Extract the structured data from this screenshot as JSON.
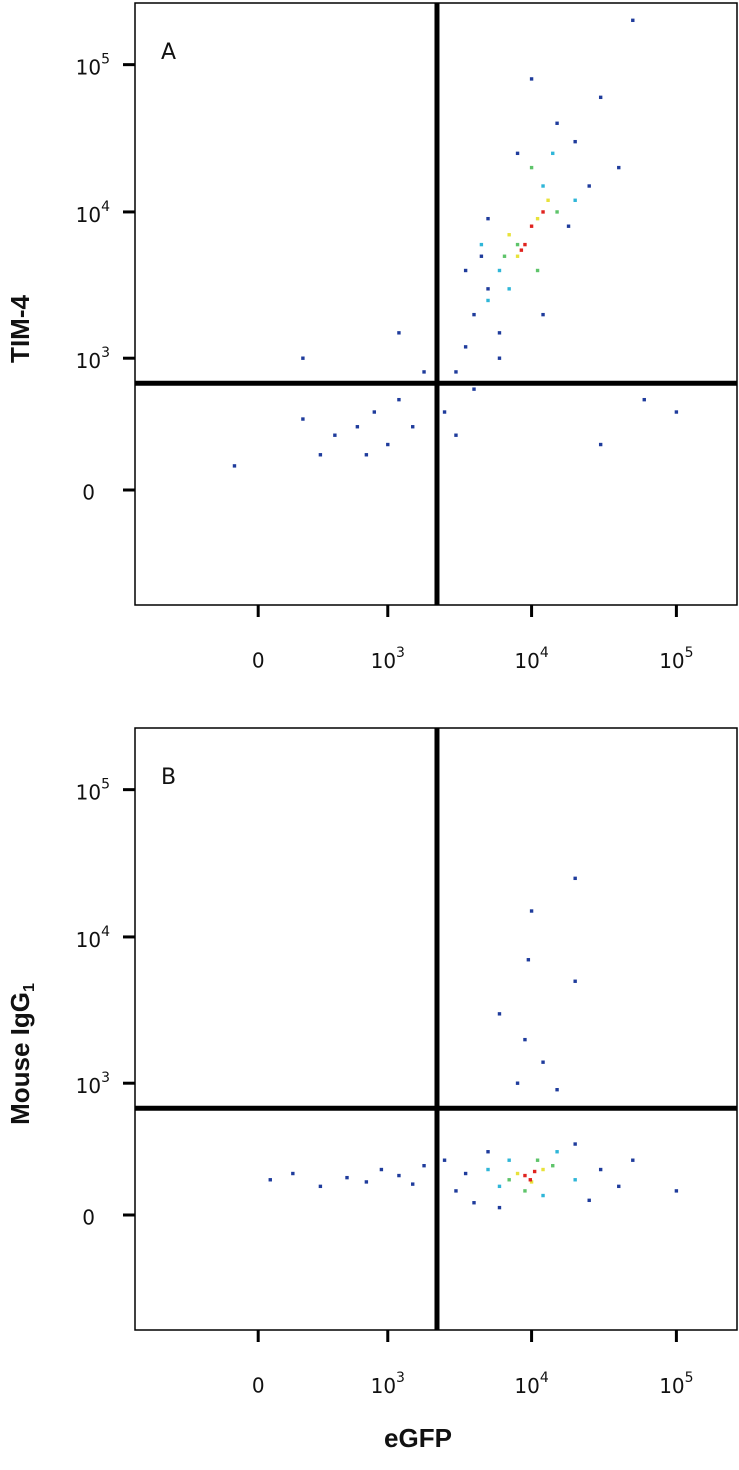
{
  "chart_data": [
    {
      "type": "scatter",
      "annotation": "A",
      "ylabel": "TIM-4",
      "xscale": "biexponential",
      "yscale": "biexponential",
      "xlim": [
        -900,
        262144
      ],
      "ylim": [
        -760,
        262144
      ],
      "xticks": [
        0,
        {
          "value": 1000,
          "label": "10",
          "exponent": "3"
        },
        {
          "value": 10000,
          "label": "10",
          "exponent": "4"
        },
        {
          "value": 100000,
          "label": "10",
          "exponent": "5"
        }
      ],
      "yticks": [
        0,
        {
          "value": 1000,
          "label": "10",
          "exponent": "3"
        },
        {
          "value": 10000,
          "label": "10",
          "exponent": "4"
        },
        {
          "value": 100000,
          "label": "10",
          "exponent": "5"
        }
      ],
      "gate_x": 2215,
      "gate_y": 663,
      "series": [
        {
          "color": "#1f3c9c",
          "x": [
            200,
            400,
            600,
            800,
            1000,
            1200,
            300,
            -100,
            1500,
            700,
            2500,
            3000,
            4000,
            1800,
            1200,
            3500,
            200,
            4000,
            5000,
            6000,
            3500,
            20000,
            15000,
            25000,
            30000,
            8000,
            5000,
            40000,
            6000,
            12000,
            18000,
            10000,
            50000,
            100000,
            60000,
            30000,
            2200,
            4500,
            3000
          ],
          "y": [
            350,
            250,
            300,
            400,
            200,
            500,
            150,
            100,
            300,
            150,
            400,
            250,
            600,
            800,
            1500,
            1200,
            1000,
            2000,
            3000,
            1500,
            4000,
            30000,
            40000,
            15000,
            60000,
            25000,
            9000,
            20000,
            1000,
            2000,
            8000,
            80000,
            200000,
            400,
            500,
            200,
            100,
            5000,
            800
          ]
        },
        {
          "color": "#2fb6d8",
          "x": [
            6000,
            12000,
            7000,
            14000,
            5000,
            20000,
            4500
          ],
          "y": [
            4000,
            15000,
            3000,
            25000,
            2500,
            12000,
            6000
          ]
        },
        {
          "color": "#5ec46a",
          "x": [
            8000,
            15000,
            10000,
            6500,
            11000
          ],
          "y": [
            6000,
            10000,
            20000,
            5000,
            4000
          ]
        },
        {
          "color": "#e8e23a",
          "x": [
            8000,
            11000,
            13000,
            7000
          ],
          "y": [
            5000,
            9000,
            12000,
            7000
          ]
        },
        {
          "color": "#e0231f",
          "x": [
            9000,
            10000,
            8500,
            12000
          ],
          "y": [
            6000,
            8000,
            5500,
            10000
          ]
        }
      ]
    },
    {
      "type": "scatter",
      "annotation": "B",
      "ylabel": "Mouse IgG",
      "ylabel_sub": "1",
      "xlabel": "eGFP",
      "xscale": "biexponential",
      "yscale": "biexponential",
      "xlim": [
        -900,
        262144
      ],
      "ylim": [
        -760,
        262144
      ],
      "xticks": [
        0,
        {
          "value": 1000,
          "label": "10",
          "exponent": "3"
        },
        {
          "value": 10000,
          "label": "10",
          "exponent": "4"
        },
        {
          "value": 100000,
          "label": "10",
          "exponent": "5"
        }
      ],
      "yticks": [
        0,
        {
          "value": 1000,
          "label": "10",
          "exponent": "3"
        },
        {
          "value": 10000,
          "label": "10",
          "exponent": "4"
        },
        {
          "value": 100000,
          "label": "10",
          "exponent": "5"
        }
      ],
      "gate_x": 2215,
      "gate_y": 663,
      "series": [
        {
          "color": "#1f3c9c",
          "x": [
            50,
            150,
            300,
            500,
            700,
            900,
            1200,
            1500,
            1800,
            2500,
            3000,
            4000,
            5000,
            6000,
            20000,
            30000,
            40000,
            50000,
            3500,
            25000,
            8000,
            9000,
            10000,
            12000,
            15000,
            9500,
            6000,
            20000,
            100000,
            20000
          ],
          "y": [
            150,
            180,
            120,
            160,
            140,
            200,
            170,
            130,
            220,
            250,
            100,
            50,
            300,
            30,
            350,
            200,
            120,
            250,
            180,
            60,
            1000,
            2000,
            15000,
            1400,
            900,
            7000,
            3000,
            25000,
            100,
            5000
          ]
        },
        {
          "color": "#2fb6d8",
          "x": [
            5000,
            7000,
            15000,
            20000,
            12000,
            6000
          ],
          "y": [
            200,
            250,
            300,
            150,
            80,
            120
          ]
        },
        {
          "color": "#5ec46a",
          "x": [
            7000,
            14000,
            9000,
            11000
          ],
          "y": [
            150,
            220,
            100,
            250
          ]
        },
        {
          "color": "#e8e23a",
          "x": [
            8000,
            12000,
            10000
          ],
          "y": [
            180,
            200,
            140
          ]
        },
        {
          "color": "#e0231f",
          "x": [
            9000,
            10500,
            9800
          ],
          "y": [
            170,
            190,
            150
          ]
        }
      ]
    }
  ]
}
